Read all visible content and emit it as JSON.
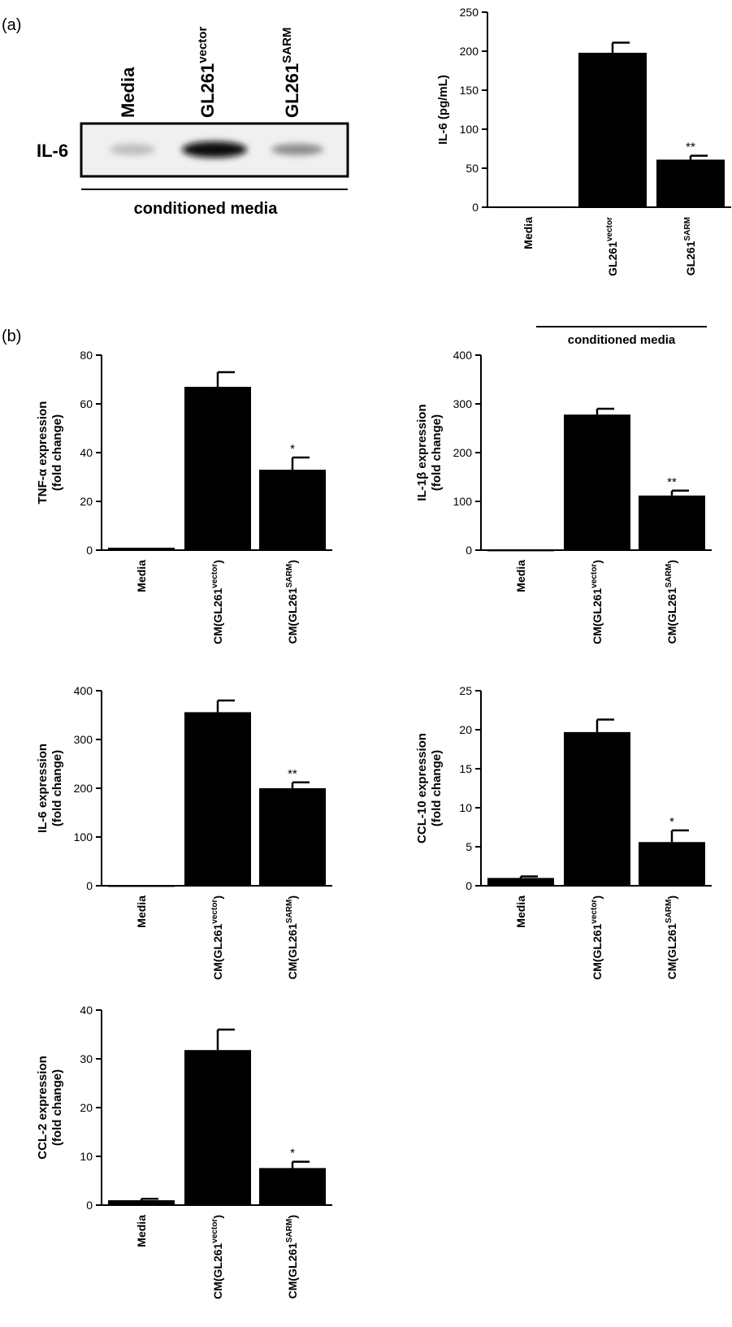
{
  "panel_labels": {
    "a": "(a)",
    "b": "(b)"
  },
  "blot": {
    "lanes": [
      {
        "name": "Media",
        "sup": ""
      },
      {
        "name": "GL261",
        "sup": "vector"
      },
      {
        "name": "GL261",
        "sup": "SARM"
      }
    ],
    "row_label": "IL-6",
    "caption": "conditioned media"
  },
  "chart_data": [
    {
      "type": "bar",
      "ylabel": "IL-6 (pg/mL)",
      "ylim": [
        0,
        250
      ],
      "yticks": [
        0,
        50,
        100,
        150,
        200,
        250
      ],
      "categories": [
        {
          "name": "Media",
          "sup": ""
        },
        {
          "name": "GL261",
          "sup": "vector"
        },
        {
          "name": "GL261",
          "sup": "SARM"
        }
      ],
      "values": [
        1,
        198,
        61
      ],
      "errors": [
        0,
        13,
        5
      ],
      "significance": [
        "",
        "",
        "**"
      ],
      "xcaption": "conditioned media"
    },
    {
      "type": "bar",
      "ylabel": [
        "TNF-α expression",
        "(fold change)"
      ],
      "ylim": [
        0,
        80
      ],
      "yticks": [
        0,
        20,
        40,
        60,
        80
      ],
      "categories": [
        {
          "name": "Media",
          "sup": ""
        },
        {
          "name": "CM(GL261",
          "sup": "vector",
          "end": ")"
        },
        {
          "name": "CM(GL261",
          "sup": "SARM",
          "end": ")"
        }
      ],
      "values": [
        1,
        67,
        33
      ],
      "errors": [
        0,
        6,
        5
      ],
      "significance": [
        "",
        "",
        "*"
      ]
    },
    {
      "type": "bar",
      "ylabel": [
        "IL-1β expression",
        "(fold change)"
      ],
      "ylim": [
        0,
        400
      ],
      "yticks": [
        0,
        100,
        200,
        300,
        400
      ],
      "categories": [
        {
          "name": "Media",
          "sup": ""
        },
        {
          "name": "CM(GL261",
          "sup": "vector",
          "end": ")"
        },
        {
          "name": "CM(GL261",
          "sup": "SARM",
          "end": ")"
        }
      ],
      "values": [
        1,
        278,
        112
      ],
      "errors": [
        0,
        12,
        10
      ],
      "significance": [
        "",
        "",
        "**"
      ]
    },
    {
      "type": "bar",
      "ylabel": [
        "IL-6 expression",
        "(fold change)"
      ],
      "ylim": [
        0,
        400
      ],
      "yticks": [
        0,
        100,
        200,
        300,
        400
      ],
      "categories": [
        {
          "name": "Media",
          "sup": ""
        },
        {
          "name": "CM(GL261",
          "sup": "vector",
          "end": ")"
        },
        {
          "name": "CM(GL261",
          "sup": "SARM",
          "end": ")"
        }
      ],
      "values": [
        1,
        356,
        200
      ],
      "errors": [
        0,
        24,
        12
      ],
      "significance": [
        "",
        "",
        "**"
      ]
    },
    {
      "type": "bar",
      "ylabel": [
        "CCL-10 expression",
        "(fold change)"
      ],
      "ylim": [
        0,
        25
      ],
      "yticks": [
        0,
        5,
        10,
        15,
        20,
        25
      ],
      "categories": [
        {
          "name": "Media",
          "sup": ""
        },
        {
          "name": "CM(GL261",
          "sup": "vector",
          "end": ")"
        },
        {
          "name": "CM(GL261",
          "sup": "SARM",
          "end": ")"
        }
      ],
      "values": [
        1,
        19.7,
        5.6
      ],
      "errors": [
        0.2,
        1.6,
        1.5
      ],
      "significance": [
        "",
        "",
        "*"
      ]
    },
    {
      "type": "bar",
      "ylabel": [
        "CCL-2 expression",
        "(fold change)"
      ],
      "ylim": [
        0,
        40
      ],
      "yticks": [
        0,
        10,
        20,
        30,
        40
      ],
      "categories": [
        {
          "name": "Media",
          "sup": ""
        },
        {
          "name": "CM(GL261",
          "sup": "vector",
          "end": ")"
        },
        {
          "name": "CM(GL261",
          "sup": "SARM",
          "end": ")"
        }
      ],
      "values": [
        1,
        31.8,
        7.6
      ],
      "errors": [
        0.3,
        4.2,
        1.3
      ],
      "significance": [
        "",
        "",
        "*"
      ]
    }
  ]
}
